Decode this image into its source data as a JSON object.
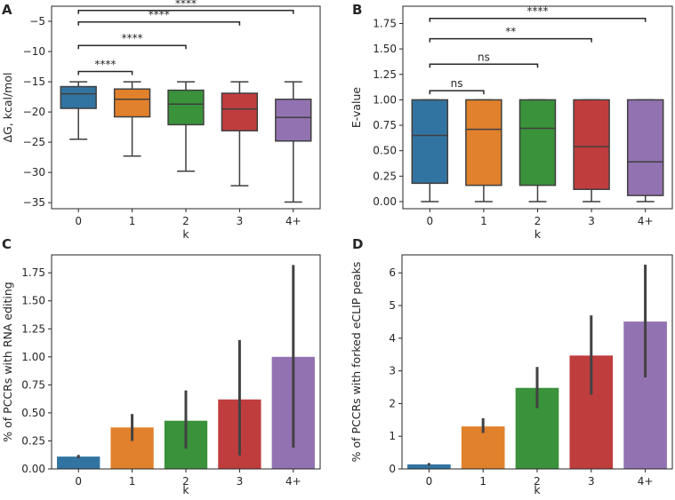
{
  "colors": [
    "#3274a1",
    "#e1812c",
    "#3a923a",
    "#c03d3e",
    "#9372b2"
  ],
  "chart_data": [
    {
      "panel": "A",
      "type": "box",
      "categories": [
        "0",
        "1",
        "2",
        "3",
        "4+"
      ],
      "xlabel": "k",
      "ylabel": "ΔG, kcal/mol",
      "ylim": [
        -36,
        -2.5
      ],
      "yticks": [
        -35,
        -30,
        -25,
        -20,
        -15,
        -10,
        -5
      ],
      "yticklabels": [
        "−35",
        "−30",
        "−25",
        "−20",
        "−15",
        "−10",
        "−5"
      ],
      "boxes": [
        {
          "whislo": -24.5,
          "q1": -19.4,
          "med": -17.0,
          "q3": -15.8,
          "whishi": -15.0
        },
        {
          "whislo": -27.3,
          "q1": -20.8,
          "med": -17.9,
          "q3": -16.2,
          "whishi": -15.0
        },
        {
          "whislo": -29.8,
          "q1": -22.1,
          "med": -18.7,
          "q3": -16.4,
          "whishi": -15.0
        },
        {
          "whislo": -32.2,
          "q1": -23.1,
          "med": -19.5,
          "q3": -16.9,
          "whishi": -15.0
        },
        {
          "whislo": -34.9,
          "q1": -24.8,
          "med": -20.9,
          "q3": -17.9,
          "whishi": -15.0
        }
      ],
      "annotations": [
        {
          "from": 0,
          "to": 1,
          "y": -13.3,
          "label": "****"
        },
        {
          "from": 0,
          "to": 2,
          "y": -9.0,
          "label": "****"
        },
        {
          "from": 0,
          "to": 3,
          "y": -5.1,
          "label": "****"
        },
        {
          "from": 0,
          "to": 4,
          "y": -3.2,
          "label": "****"
        }
      ]
    },
    {
      "panel": "B",
      "type": "box",
      "categories": [
        "0",
        "1",
        "2",
        "3",
        "4+"
      ],
      "xlabel": "k",
      "ylabel": "E-value",
      "ylim": [
        -0.07,
        1.92
      ],
      "yticks": [
        0.0,
        0.25,
        0.5,
        0.75,
        1.0,
        1.25,
        1.5,
        1.75
      ],
      "yticklabels": [
        "0.00",
        "0.25",
        "0.50",
        "0.75",
        "1.00",
        "1.25",
        "1.50",
        "1.75"
      ],
      "boxes": [
        {
          "whislo": 0.0,
          "q1": 0.18,
          "med": 0.65,
          "q3": 1.0,
          "whishi": 1.0
        },
        {
          "whislo": 0.0,
          "q1": 0.16,
          "med": 0.71,
          "q3": 1.0,
          "whishi": 1.0
        },
        {
          "whislo": 0.0,
          "q1": 0.16,
          "med": 0.72,
          "q3": 1.0,
          "whishi": 1.0
        },
        {
          "whislo": 0.0,
          "q1": 0.12,
          "med": 0.54,
          "q3": 1.0,
          "whishi": 1.0
        },
        {
          "whislo": 0.0,
          "q1": 0.06,
          "med": 0.39,
          "q3": 1.0,
          "whishi": 1.0
        }
      ],
      "annotations": [
        {
          "from": 0,
          "to": 1,
          "y": 1.09,
          "label": "ns"
        },
        {
          "from": 0,
          "to": 2,
          "y": 1.35,
          "label": "ns"
        },
        {
          "from": 0,
          "to": 3,
          "y": 1.6,
          "label": "**"
        },
        {
          "from": 0,
          "to": 4,
          "y": 1.8,
          "label": "****"
        }
      ]
    },
    {
      "panel": "C",
      "type": "bar",
      "categories": [
        "0",
        "1",
        "2",
        "3",
        "4+"
      ],
      "xlabel": "k",
      "ylabel": "% of PCCRs with RNA editing",
      "ylim": [
        0,
        1.91
      ],
      "yticks": [
        0.0,
        0.25,
        0.5,
        0.75,
        1.0,
        1.25,
        1.5,
        1.75
      ],
      "yticklabels": [
        "0.00",
        "0.25",
        "0.50",
        "0.75",
        "1.00",
        "1.25",
        "1.50",
        "1.75"
      ],
      "values": [
        0.11,
        0.37,
        0.43,
        0.62,
        1.0
      ],
      "err_low": [
        0.095,
        0.25,
        0.18,
        0.12,
        0.19
      ],
      "err_high": [
        0.125,
        0.49,
        0.7,
        1.15,
        1.82
      ]
    },
    {
      "panel": "D",
      "type": "bar",
      "categories": [
        "0",
        "1",
        "2",
        "3",
        "4+"
      ],
      "xlabel": "k",
      "ylabel": "% of PCCRs with forked eCLIP peaks",
      "ylim": [
        0,
        6.55
      ],
      "yticks": [
        0,
        1,
        2,
        3,
        4,
        5,
        6
      ],
      "yticklabels": [
        "0",
        "1",
        "2",
        "3",
        "4",
        "5",
        "6"
      ],
      "values": [
        0.14,
        1.3,
        2.48,
        3.47,
        4.51
      ],
      "err_low": [
        0.1,
        1.1,
        1.86,
        2.27,
        2.8
      ],
      "err_high": [
        0.18,
        1.55,
        3.12,
        4.7,
        6.25
      ]
    }
  ]
}
